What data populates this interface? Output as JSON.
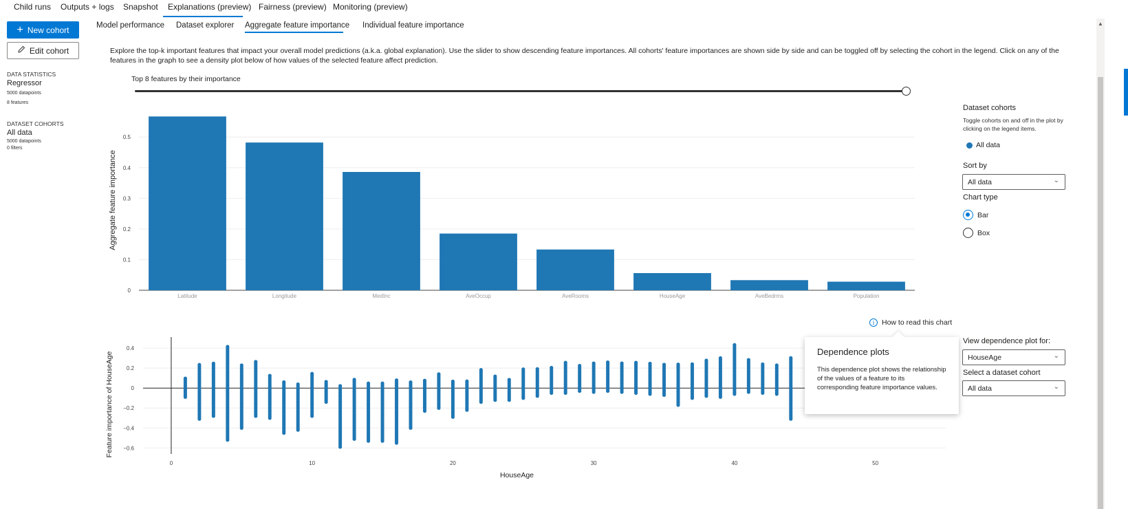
{
  "top_tabs": [
    "Child runs",
    "Outputs + logs",
    "Snapshot",
    "Explanations (preview)",
    "Fairness (preview)",
    "Monitoring (preview)"
  ],
  "left": {
    "new_cohort": "New cohort",
    "edit_cohort": "Edit cohort",
    "data_stats_heading": "DATA STATISTICS",
    "model_type": "Regressor",
    "datapoints": "5000 datapoints",
    "features": "8 features",
    "cohorts_heading": "DATASET COHORTS",
    "cohort_name": "All data",
    "cohort_datapoints": "5000 datapoints",
    "cohort_filters": "0 filters"
  },
  "sub_tabs": [
    "Model performance",
    "Dataset explorer",
    "Aggregate feature importance",
    "Individual feature importance"
  ],
  "description": "Explore the top-k important features that impact your overall model predictions (a.k.a. global explanation). Use the slider to show descending feature importances. All cohorts' feature importances are shown side by side and can be toggled off by selecting the cohort in the legend. Click on any of the features in the graph to see a density plot below of how values of the selected feature affect prediction.",
  "topk_label": "Top 8 features by their importance",
  "topk_value": 8,
  "right_panel": {
    "dataset_cohorts": "Dataset cohorts",
    "toggle_help": "Toggle cohorts on and off in the plot by clicking on the legend items.",
    "legend_item": "All data",
    "sort_by_label": "Sort by",
    "sort_by_value": "All data",
    "chart_type_label": "Chart type",
    "chart_type_options": [
      "Bar",
      "Box"
    ],
    "chart_type_selected": "Bar",
    "how_to_read": "How to read this chart",
    "dependence_label": "View dependence plot for:",
    "dependence_value": "HouseAge",
    "select_cohort_label": "Select a dataset cohort",
    "select_cohort_value": "All data"
  },
  "callout": {
    "title": "Dependence plots",
    "body": "This dependence plot shows the relationship of the values of a feature to its corresponding feature importance values."
  },
  "colors": {
    "accent": "#0078d4",
    "bar": "#1f77b4"
  },
  "chart_data": [
    {
      "type": "bar",
      "ylabel": "Aggregate feature importance",
      "categories": [
        "Latitude",
        "Longitude",
        "MedInc",
        "AveOccup",
        "AveRooms",
        "HouseAge",
        "AveBedrms",
        "Population"
      ],
      "values": [
        0.567,
        0.482,
        0.386,
        0.185,
        0.133,
        0.056,
        0.033,
        0.028
      ],
      "ylim": [
        0,
        0.57
      ],
      "yticks": [
        0,
        0.1,
        0.2,
        0.3,
        0.4,
        0.5
      ],
      "ytick_labels": [
        "0",
        "0.1",
        "0.2",
        "0.3",
        "0.4",
        "0.5"
      ]
    },
    {
      "type": "scatter",
      "xlabel": "HouseAge",
      "ylabel": "Feature importance of HouseAge",
      "xlim": [
        -2,
        55
      ],
      "ylim": [
        -0.66,
        0.47
      ],
      "xticks": [
        0,
        10,
        20,
        30,
        40,
        50
      ],
      "yticks": [
        0.4,
        0.2,
        0,
        -0.2,
        -0.4,
        -0.6
      ],
      "ytick_labels": [
        "0.4",
        "0.2",
        "0",
        "−0.2",
        "−0.4",
        "−0.6"
      ],
      "x_values": [
        1,
        2,
        3,
        4,
        5,
        6,
        7,
        8,
        9,
        10,
        11,
        12,
        13,
        14,
        15,
        16,
        17,
        18,
        19,
        20,
        21,
        22,
        23,
        24,
        25,
        26,
        27,
        28,
        29,
        30,
        31,
        32,
        33,
        34,
        35,
        36,
        37,
        38,
        39,
        40,
        41,
        42,
        43,
        44
      ],
      "y_min": [
        -0.09,
        -0.31,
        -0.28,
        -0.52,
        -0.4,
        -0.28,
        -0.3,
        -0.45,
        -0.42,
        -0.28,
        -0.14,
        -0.59,
        -0.51,
        -0.53,
        -0.53,
        -0.55,
        -0.4,
        -0.23,
        -0.2,
        -0.29,
        -0.22,
        -0.14,
        -0.12,
        -0.12,
        -0.1,
        -0.08,
        -0.05,
        -0.05,
        -0.03,
        -0.04,
        -0.03,
        -0.04,
        -0.05,
        -0.06,
        -0.07,
        -0.17,
        -0.1,
        -0.08,
        -0.09,
        -0.06,
        -0.04,
        -0.05,
        -0.06,
        -0.31
      ],
      "y_max": [
        0.11,
        0.24,
        0.25,
        0.43,
        0.24,
        0.27,
        0.14,
        0.07,
        0.05,
        0.16,
        0.07,
        0.03,
        0.1,
        0.05,
        0.06,
        0.08,
        0.07,
        0.09,
        0.14,
        0.08,
        0.08,
        0.19,
        0.12,
        0.1,
        0.2,
        0.2,
        0.21,
        0.26,
        0.24,
        0.26,
        0.26,
        0.25,
        0.27,
        0.25,
        0.24,
        0.24,
        0.24,
        0.28,
        0.31,
        0.44,
        0.29,
        0.24,
        0.24,
        0.31
      ]
    }
  ]
}
